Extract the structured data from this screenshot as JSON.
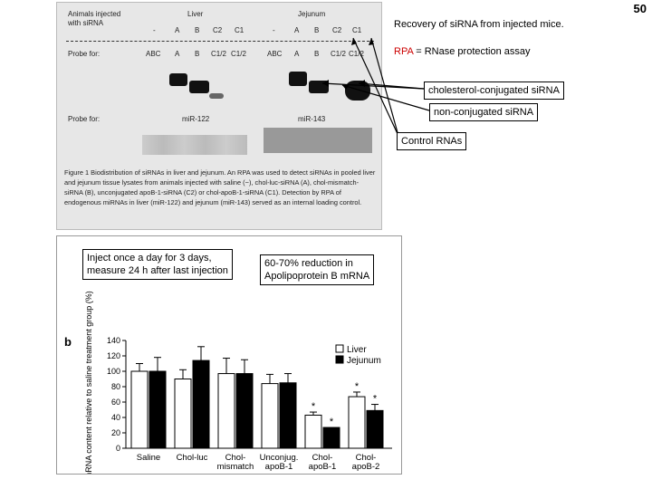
{
  "slide_number": "50",
  "figure1": {
    "row_animals": "Animals injected\nwith siRNA",
    "liver_title": "Liver",
    "jejunum_title": "Jejunum",
    "liver_lanes": [
      "-",
      "A",
      "B",
      "C2",
      "C1"
    ],
    "jejunum_lanes": [
      "-",
      "A",
      "B",
      "C2",
      "C1"
    ],
    "probe_label": "Probe for:",
    "probe_liver": [
      "ABC",
      "A",
      "B",
      "C1/2",
      "C1/2"
    ],
    "probe_jejunum": [
      "ABC",
      "A",
      "B",
      "C1/2",
      "C1/2"
    ],
    "probe2_liver": "miR-122",
    "probe2_jejunum": "miR-143",
    "caption": "Figure 1 Biodistribution of siRNAs in liver and jejunum. An RPA was used to detect siRNAs in pooled liver and jejunum tissue lysates from animals injected with saline (−), chol-luc-siRNA (A), chol-mismatch-siRNA (B), unconjugated apoB-1-siRNA (C2) or chol-apoB-1-siRNA (C1). Detection by RPA of endogenous miRNAs in liver (miR-122) and jejunum (miR-143) served as an internal loading control."
  },
  "callouts": {
    "recovery": "Recovery of siRNA from injected mice.",
    "rpa_abbr": "RPA",
    "rpa_rest": " = RNase protection assay",
    "cholesterol": "cholesterol-conjugated siRNA",
    "nonconj": "non-conjugated siRNA",
    "control": "Control RNAs"
  },
  "notes": {
    "inject": "Inject once a day for 3 days,\nmeasure 24 h after last injection",
    "reduction": "60-70% reduction in\nApolipoprotein B mRNA"
  },
  "colors": {
    "rpa": "#cc0000",
    "liver_bar": "#ffffff",
    "jejunum_bar": "#000000"
  },
  "chart_data": {
    "type": "bar",
    "panel_label": "b",
    "ylabel": "apoB mRNA content relative to saline treatment group (%)",
    "ylim": [
      0,
      140
    ],
    "yticks": [
      0,
      20,
      40,
      60,
      80,
      100,
      120,
      140
    ],
    "categories": [
      "Saline",
      "Chol-luc",
      "Chol-mismatch",
      "Unconjug. apoB-1",
      "Chol-apoB-1",
      "Chol-apoB-2"
    ],
    "category_lines": [
      [
        "Saline"
      ],
      [
        "Chol-luc"
      ],
      [
        "Chol-",
        "mismatch"
      ],
      [
        "Unconjug.",
        "apoB-1"
      ],
      [
        "Chol-",
        "apoB-1"
      ],
      [
        "Chol-",
        "apoB-2"
      ]
    ],
    "series": [
      {
        "name": "Liver",
        "values": [
          100,
          90,
          97,
          84,
          43,
          67
        ],
        "errors": [
          10,
          12,
          20,
          12,
          4,
          6
        ]
      },
      {
        "name": "Jejunum",
        "values": [
          100,
          114,
          97,
          85,
          27,
          49
        ],
        "errors": [
          18,
          18,
          18,
          12,
          0,
          8
        ]
      }
    ],
    "significance": [
      [
        false,
        false
      ],
      [
        false,
        false
      ],
      [
        false,
        false
      ],
      [
        false,
        false
      ],
      [
        true,
        true
      ],
      [
        true,
        true
      ]
    ],
    "sig_symbol": "*"
  }
}
